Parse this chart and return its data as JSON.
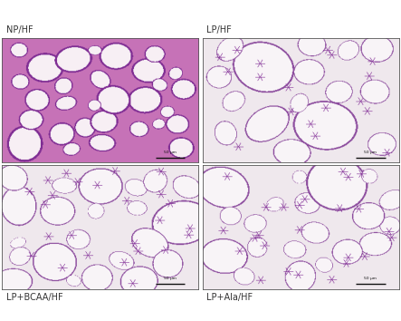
{
  "panel_labels_top": [
    "NP/HF",
    "LP/HF"
  ],
  "panel_labels_bottom": [
    "LP+BCAA/HF",
    "LP+Ala/HF"
  ],
  "label_fontsize": 7,
  "label_color": "#333333",
  "bg_color": "#ffffff",
  "border_color": "#555555",
  "figsize": [
    4.43,
    3.54
  ],
  "dpi": 100,
  "np_bg": "#c060a8",
  "lp_bg": "#ede8ec",
  "cell_interior": "#f7f3f6",
  "np_cell_interior": "#f5f0f4",
  "np_edge_color": "#7030a0",
  "lp_edge_color": "#9060a8",
  "junction_color": "#8040a0",
  "scale_bar_color": "#222222"
}
